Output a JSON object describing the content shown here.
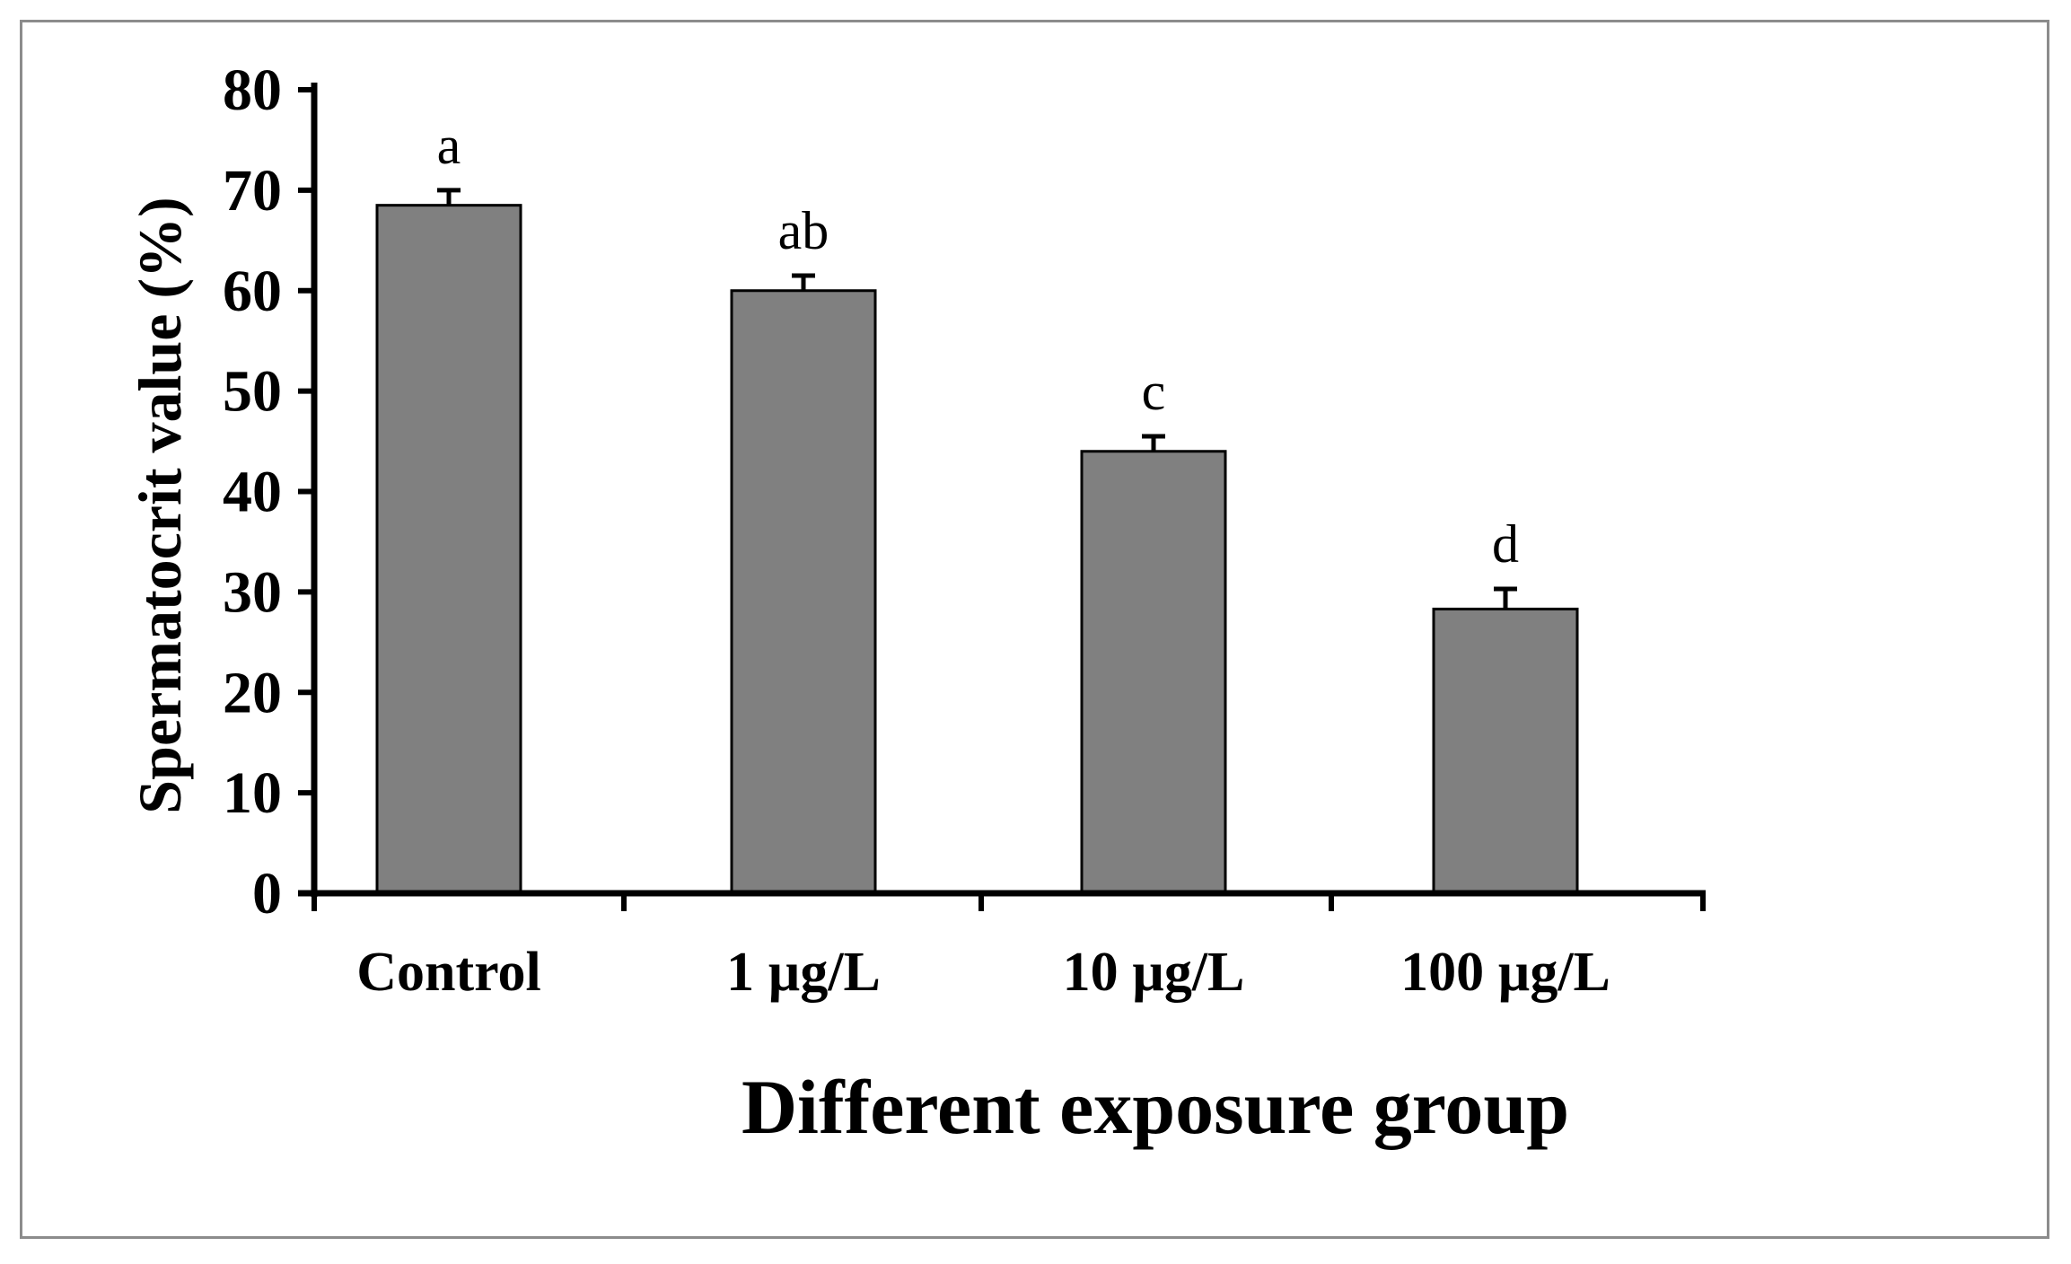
{
  "chart_data": {
    "type": "bar",
    "title": "",
    "xlabel": "Different exposure group",
    "ylabel": "Spermatocrit value (%)",
    "ylim": [
      0,
      80
    ],
    "yticks": [
      "0",
      "10",
      "20",
      "30",
      "40",
      "50",
      "60",
      "70",
      "80"
    ],
    "categories": [
      "Control",
      "1 µg/L",
      "10 µg/L",
      "100 µg/L"
    ],
    "values": [
      68.5,
      60.0,
      44.0,
      28.3
    ],
    "errors": [
      1.5,
      1.5,
      1.5,
      2.0
    ],
    "significance_labels": [
      "a",
      "ab",
      "c",
      "d"
    ],
    "grid": false,
    "colors": {
      "bar_fill": "#808080",
      "bar_stroke": "#000000",
      "axis": "#000000",
      "frame": "#8c8c8c"
    }
  }
}
